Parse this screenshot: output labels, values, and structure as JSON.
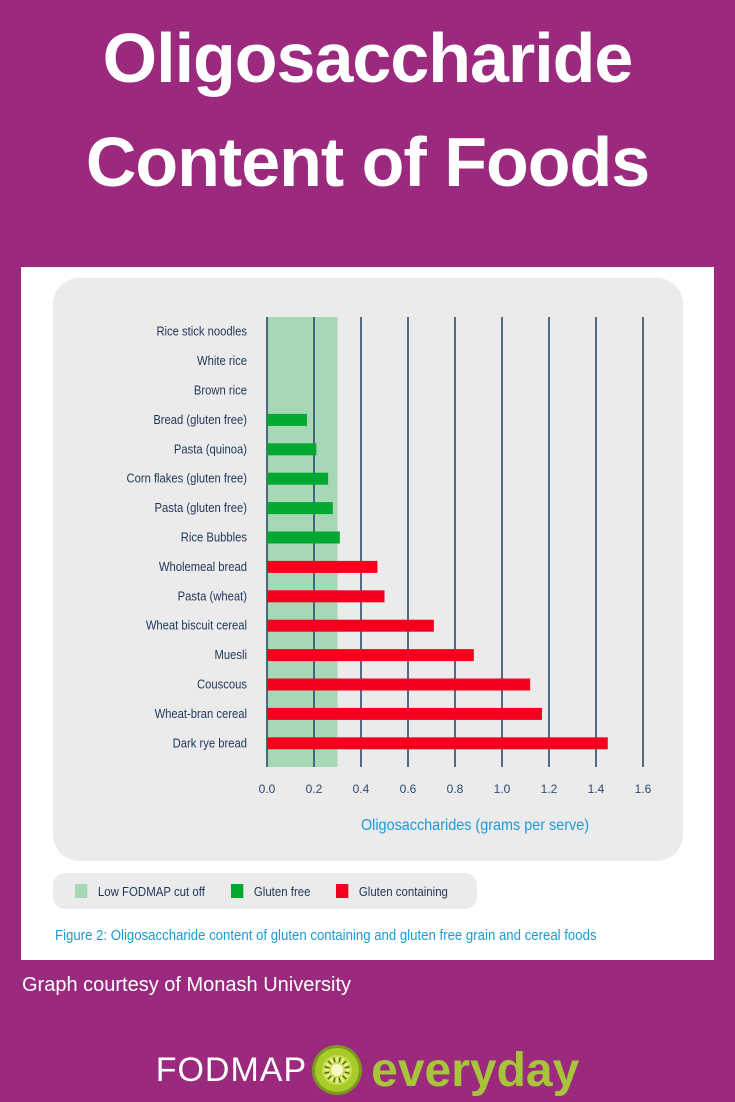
{
  "header": {
    "title_line1": "Oligosaccharide",
    "title_line2": "Content of Foods"
  },
  "colors": {
    "background": "#9b2a7e",
    "cutoff_band": "#a6d8b6",
    "gluten_free": "#00a832",
    "gluten_containing": "#f5001e",
    "gridline": "#2d4a6e",
    "axis_label": "#1a9bd7",
    "logo_green": "#a8c43a"
  },
  "chart_data": {
    "type": "bar",
    "orientation": "horizontal",
    "xlabel": "Oligosaccharides (grams per serve)",
    "xlim": [
      0,
      1.6
    ],
    "xticks": [
      "0.0",
      "0.2",
      "0.4",
      "0.6",
      "0.8",
      "1.0",
      "1.2",
      "1.4",
      "1.6"
    ],
    "grid": true,
    "cutoff": {
      "label": "Low FODMAP cut off",
      "value": 0.3
    },
    "categories": [
      "Rice stick noodles",
      "White rice",
      "Brown rice",
      "Bread (gluten free)",
      "Pasta (quinoa)",
      "Corn flakes (gluten free)",
      "Pasta (gluten free)",
      "Rice Bubbles",
      "Wholemeal bread",
      "Pasta (wheat)",
      "Wheat biscuit cereal",
      "Muesli",
      "Couscous",
      "Wheat-bran cereal",
      "Dark rye bread"
    ],
    "values": [
      0,
      0,
      0,
      0.17,
      0.21,
      0.26,
      0.28,
      0.31,
      0.47,
      0.5,
      0.71,
      0.88,
      1.12,
      1.17,
      1.45
    ],
    "groups": [
      "Gluten free",
      "Gluten free",
      "Gluten free",
      "Gluten free",
      "Gluten free",
      "Gluten free",
      "Gluten free",
      "Gluten free",
      "Gluten containing",
      "Gluten containing",
      "Gluten containing",
      "Gluten containing",
      "Gluten containing",
      "Gluten containing",
      "Gluten containing"
    ],
    "legend": [
      {
        "label": "Low FODMAP cut off",
        "color": "#a6d8b6"
      },
      {
        "label": "Gluten free",
        "color": "#00a832"
      },
      {
        "label": "Gluten containing",
        "color": "#f5001e"
      }
    ],
    "legend_placement": "bottom-left",
    "caption": "Figure 2: Oligosaccharide content of gluten containing and gluten free grain and cereal foods"
  },
  "footer": {
    "credit": "Graph courtesy of Monash University",
    "logo_word1": "FODMAP",
    "logo_word2": "everyday",
    "logo_icon": "kiwi-fruit-icon"
  }
}
